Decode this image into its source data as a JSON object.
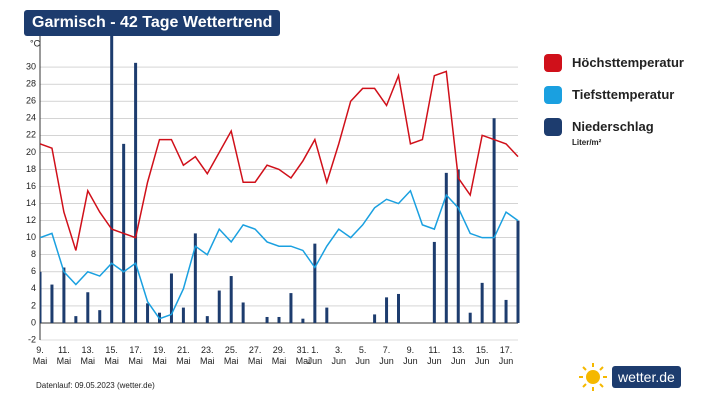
{
  "chart_data": {
    "type": "line",
    "title": "Garmisch - 42 Tage Wettertrend",
    "y_unit": "°C",
    "precip_unit": "Liter/m²",
    "note": "Datenlauf: 09.05.2023 (wetter.de)",
    "logo": "wetter.de",
    "categories": [
      "9. Mai",
      null,
      "11. Mai",
      null,
      "13. Mai",
      null,
      "15. Mai",
      null,
      "17. Mai",
      null,
      "19. Mai",
      null,
      "21. Mai",
      null,
      "23. Mai",
      null,
      "25. Mai",
      null,
      "27. Mai",
      null,
      "29. Mai",
      null,
      "31. Mai",
      "1. Jun",
      null,
      "3. Jun",
      null,
      "5. Jun",
      null,
      "7. Jun",
      null,
      "9. Jun",
      null,
      "11. Jun",
      null,
      "13. Jun",
      null,
      "15. Jun",
      null,
      "17. Jun",
      null
    ],
    "series": [
      {
        "name": "Höchsttemperatur",
        "color": "#d0101a",
        "kind": "line",
        "values": [
          21,
          20.5,
          13,
          8.5,
          15.5,
          13,
          11,
          10.5,
          10,
          16.5,
          21.5,
          21.5,
          18.5,
          19.5,
          17.5,
          20,
          22.5,
          16.5,
          16.5,
          18.5,
          18,
          17,
          19,
          21.5,
          16.5,
          21,
          26,
          27.5,
          27.5,
          25.5,
          29,
          21,
          21.5,
          29,
          29.5,
          17,
          15,
          22,
          21.5,
          21,
          19.5
        ]
      },
      {
        "name": "Tiefsttemperatur",
        "color": "#1aa0e0",
        "kind": "line",
        "values": [
          10,
          10.5,
          6,
          4.5,
          6,
          5.5,
          7,
          6,
          7,
          2.5,
          0.5,
          1,
          4,
          9,
          8,
          11,
          9.5,
          11.5,
          11,
          9.5,
          9,
          9,
          8.5,
          6.5,
          9,
          11,
          10,
          11.5,
          13.5,
          14.5,
          14,
          15.5,
          11.5,
          11,
          15,
          13.5,
          10.5,
          10,
          10,
          13,
          12
        ]
      },
      {
        "name": "Niederschlag",
        "color": "#1d3c6e",
        "kind": "bar",
        "values": [
          6,
          4.5,
          6.5,
          0.8,
          3.6,
          1.5,
          34,
          21,
          30.5,
          2.3,
          1.2,
          5.8,
          1.8,
          10.5,
          0.8,
          3.8,
          5.5,
          2.4,
          0,
          0.7,
          0.7,
          3.5,
          0.5,
          9.3,
          1.8,
          0,
          0,
          0,
          1,
          3,
          3.4,
          0,
          0,
          9.5,
          17.6,
          18,
          1.2,
          4.7,
          24,
          2.7,
          12
        ]
      }
    ],
    "ylim": [
      -2,
      34
    ],
    "yticks": [
      -2,
      0,
      2,
      4,
      6,
      8,
      10,
      12,
      14,
      16,
      18,
      20,
      22,
      24,
      26,
      28,
      30
    ],
    "grid": true
  }
}
